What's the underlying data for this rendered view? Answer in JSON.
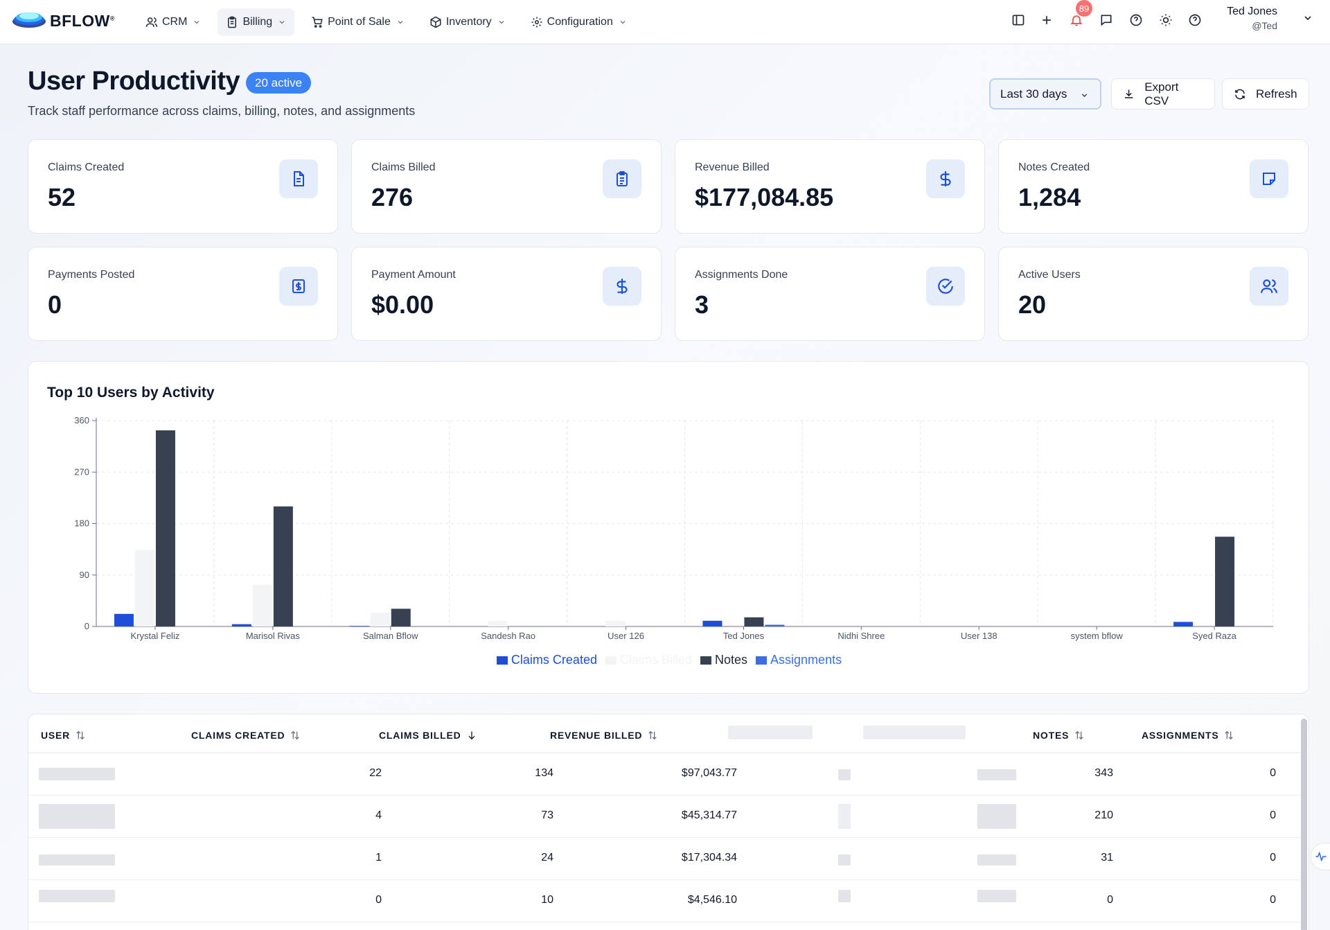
{
  "brand": {
    "name": "BFLOW",
    "mark": "®"
  },
  "nav": {
    "items": [
      {
        "label": "CRM",
        "icon": "users-icon"
      },
      {
        "label": "Billing",
        "icon": "clipboard-icon"
      },
      {
        "label": "Point of Sale",
        "icon": "cart-icon"
      },
      {
        "label": "Inventory",
        "icon": "box-icon"
      },
      {
        "label": "Configuration",
        "icon": "gear-icon"
      }
    ],
    "active_index": 1,
    "notifications_count": "89",
    "user": {
      "name": "Ted Jones",
      "handle": "@Ted"
    }
  },
  "header": {
    "title": "User Productivity",
    "active_badge": "20 active",
    "subtitle": "Track staff performance across claims, billing, notes, and assignments",
    "date_range": "Last 30 days",
    "export_label": "Export CSV",
    "refresh_label": "Refresh"
  },
  "stats": [
    {
      "label": "Claims Created",
      "value": "52",
      "icon": "document-icon"
    },
    {
      "label": "Claims Billed",
      "value": "276",
      "icon": "clipboard-list-icon"
    },
    {
      "label": "Revenue Billed",
      "value": "$177,084.85",
      "icon": "dollar-icon"
    },
    {
      "label": "Notes Created",
      "value": "1,284",
      "icon": "note-icon"
    },
    {
      "label": "Payments Posted",
      "value": "0",
      "icon": "receipt-icon"
    },
    {
      "label": "Payment Amount",
      "value": "$0.00",
      "icon": "dollar-icon"
    },
    {
      "label": "Assignments Done",
      "value": "3",
      "icon": "check-circle-icon"
    },
    {
      "label": "Active Users",
      "value": "20",
      "icon": "users-icon"
    }
  ],
  "chart": {
    "title": "Top 10 Users by Activity"
  },
  "chart_data": {
    "type": "bar",
    "title": "Top 10 Users by Activity",
    "categories": [
      "Krystal Feliz",
      "Marisol Rivas",
      "Salman Bflow",
      "Sandesh Rao",
      "User 126",
      "Ted Jones",
      "Nidhi Shree",
      "User 138",
      "system bflow",
      "Syed Raza"
    ],
    "series": [
      {
        "name": "Claims Created",
        "color": "#1d4ed8",
        "values": [
          22,
          4,
          1,
          0,
          0,
          10,
          0,
          0,
          0,
          8
        ]
      },
      {
        "name": "Claims Billed",
        "color": "#f3f4f6",
        "values": [
          134,
          73,
          24,
          10,
          10,
          0,
          0,
          0,
          0,
          0
        ]
      },
      {
        "name": "Notes",
        "color": "#374151",
        "values": [
          343,
          210,
          31,
          0,
          0,
          16,
          0,
          0,
          0,
          157
        ]
      },
      {
        "name": "Assignments",
        "color": "#3b6fe0",
        "values": [
          0,
          0,
          0,
          0,
          0,
          3,
          0,
          0,
          0,
          0
        ]
      }
    ],
    "yticks": [
      0,
      90,
      180,
      270,
      360
    ],
    "ylim": [
      0,
      360
    ],
    "grid": true,
    "legend_position": "bottom"
  },
  "table": {
    "columns": [
      {
        "label": "USER",
        "sort": "none"
      },
      {
        "label": "CLAIMS CREATED",
        "sort": "none"
      },
      {
        "label": "CLAIMS BILLED",
        "sort": "desc"
      },
      {
        "label": "REVENUE BILLED",
        "sort": "none"
      },
      {
        "label": "NOTES",
        "sort": "none"
      },
      {
        "label": "ASSIGNMENTS",
        "sort": "none"
      }
    ],
    "rows": [
      {
        "claims_created": "22",
        "claims_billed": "134",
        "revenue": "$97,043.77",
        "notes": "343",
        "assignments": "0"
      },
      {
        "claims_created": "4",
        "claims_billed": "73",
        "revenue": "$45,314.77",
        "notes": "210",
        "assignments": "0"
      },
      {
        "claims_created": "1",
        "claims_billed": "24",
        "revenue": "$17,304.34",
        "notes": "31",
        "assignments": "0"
      },
      {
        "claims_created": "0",
        "claims_billed": "10",
        "revenue": "$4,546.10",
        "notes": "0",
        "assignments": "0"
      }
    ]
  }
}
